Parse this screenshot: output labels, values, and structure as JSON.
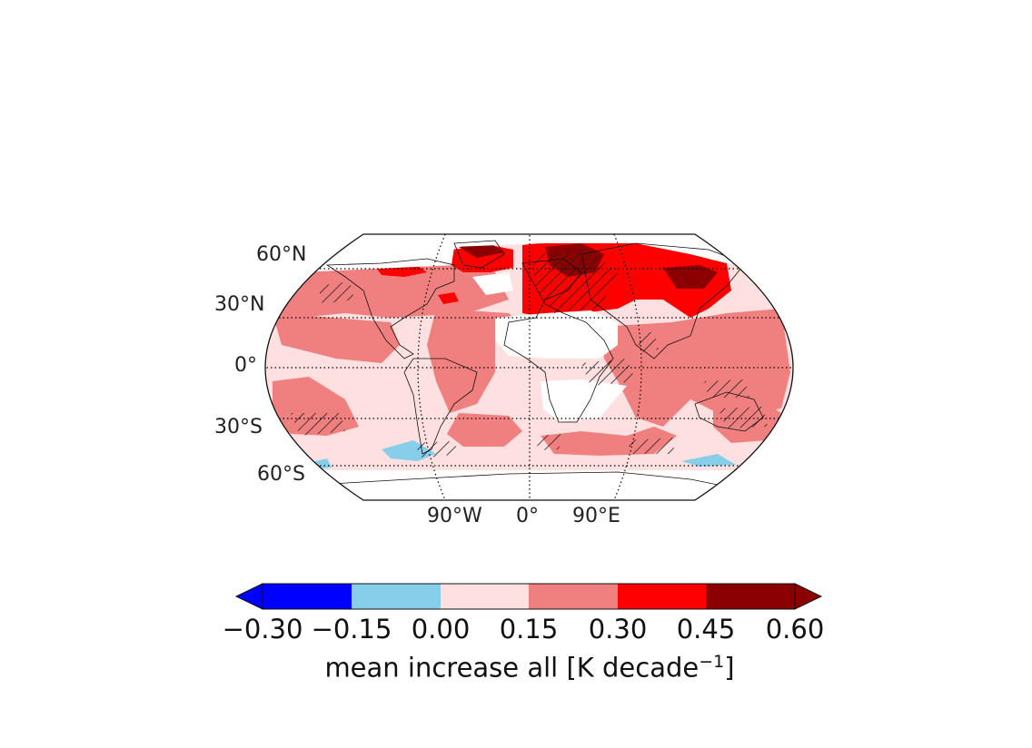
{
  "map": {
    "projection": "Robinson",
    "lat_labels": [
      "60°N",
      "30°N",
      "0°",
      "30°S",
      "60°S"
    ],
    "lon_labels": [
      "90°W",
      "0°",
      "90°E"
    ],
    "hatching_note": "",
    "colors": {
      "deep_blue": "#0000ff",
      "light_blue": "#87ceeb",
      "pale_pink": "#fde0df",
      "salmon": "#f08080",
      "red": "#ff0000",
      "dark_red": "#8b0000",
      "land_white": "#ffffff"
    }
  },
  "colorbar": {
    "ticks": [
      "−0.30",
      "−0.15",
      "0.00",
      "0.15",
      "0.30",
      "0.45",
      "0.60"
    ],
    "title_main": "mean increase all [K decade",
    "title_sup": "−1",
    "title_end": "]",
    "bins": [
      {
        "from": -0.3,
        "to": -0.15,
        "color": "#0000ff"
      },
      {
        "from": -0.15,
        "to": 0.0,
        "color": "#87ceeb"
      },
      {
        "from": 0.0,
        "to": 0.15,
        "color": "#fde0df"
      },
      {
        "from": 0.15,
        "to": 0.3,
        "color": "#f08080"
      },
      {
        "from": 0.3,
        "to": 0.45,
        "color": "#ff0000"
      },
      {
        "from": 0.45,
        "to": 0.6,
        "color": "#8b0000"
      }
    ],
    "extend": "both"
  }
}
